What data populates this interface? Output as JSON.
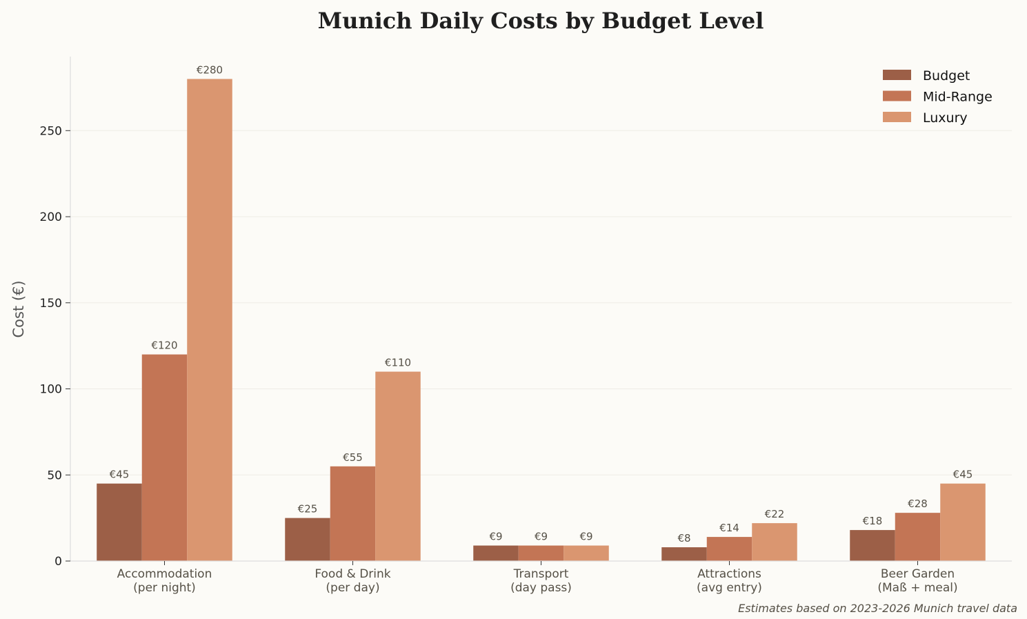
{
  "chart_data": {
    "type": "bar",
    "title": "Munich Daily Costs by Budget Level",
    "xlabel": "",
    "ylabel": "Cost (€)",
    "ylim": [
      0,
      293
    ],
    "yticks": [
      0,
      50,
      100,
      150,
      200,
      250
    ],
    "grid": "horizontal",
    "legend_position": "top-right",
    "categories": [
      [
        "Accommodation",
        "(per night)"
      ],
      [
        "Food & Drink",
        "(per day)"
      ],
      [
        "Transport",
        "(day pass)"
      ],
      [
        "Attractions",
        "(avg entry)"
      ],
      [
        "Beer Garden",
        "(Maß + meal)"
      ]
    ],
    "series": [
      {
        "name": "Budget",
        "color": "#9c5f47",
        "values": [
          45,
          25,
          9,
          8,
          18
        ],
        "labels": [
          "€45",
          "€25",
          "€9",
          "€8",
          "€18"
        ]
      },
      {
        "name": "Mid-Range",
        "color": "#c37555",
        "values": [
          120,
          55,
          9,
          14,
          28
        ],
        "labels": [
          "€120",
          "€55",
          "€9",
          "€14",
          "€28"
        ]
      },
      {
        "name": "Luxury",
        "color": "#da9670",
        "values": [
          280,
          110,
          9,
          22,
          45
        ],
        "labels": [
          "€280",
          "€110",
          "€9",
          "€22",
          "€45"
        ]
      }
    ],
    "footnote": "Estimates based on 2023-2026 Munich travel data"
  }
}
